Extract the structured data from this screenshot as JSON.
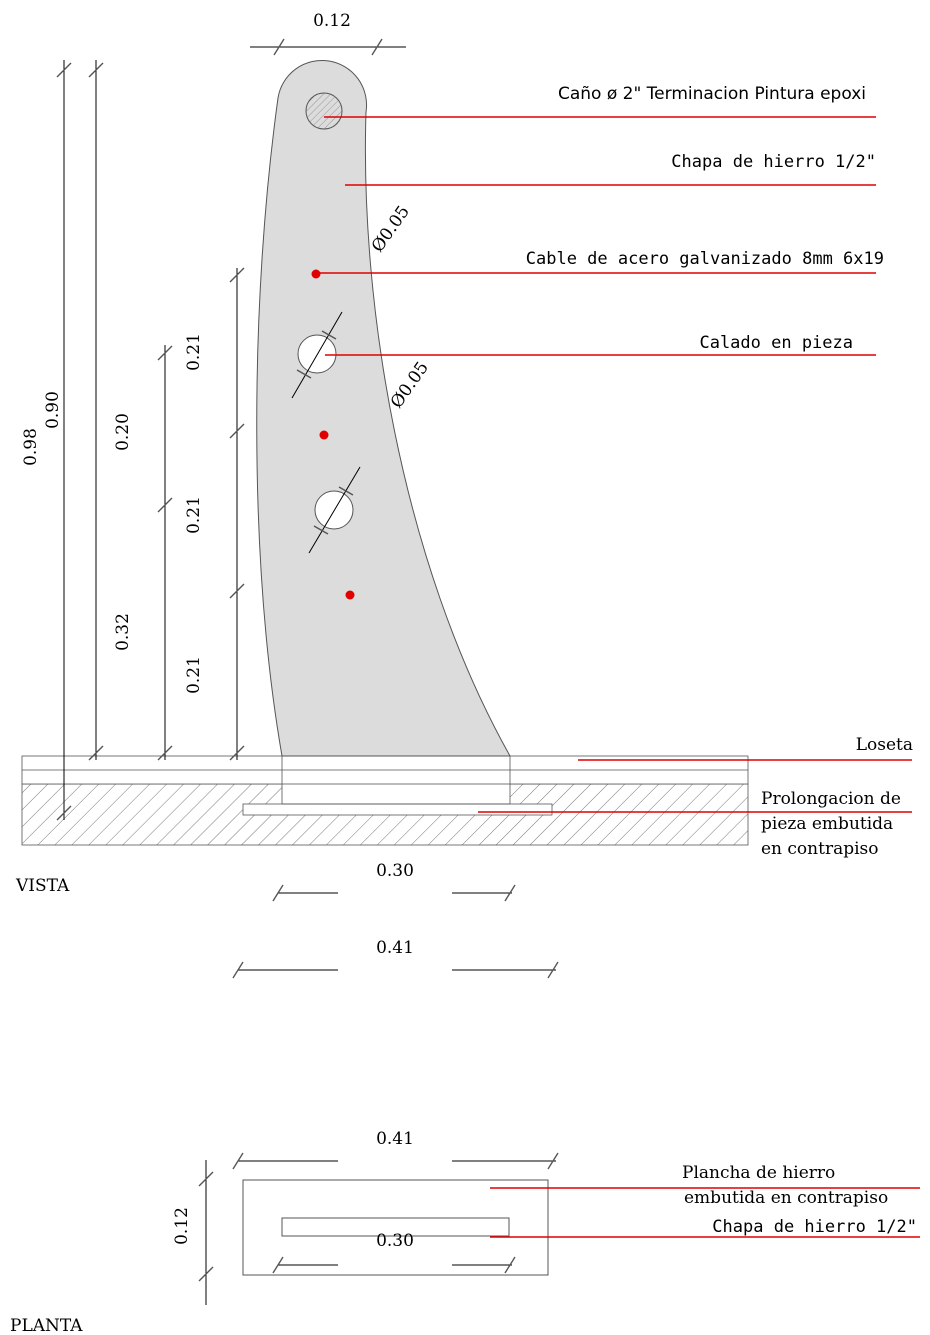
{
  "colors": {
    "leader": "#e00000",
    "piece_fill": "#dcdcdc",
    "cable_dot": "#e00000"
  },
  "views": {
    "vista": "VISTA",
    "planta": "PLANTA"
  },
  "dimensions": {
    "top_width": "0.12",
    "total_height": "0.98",
    "height_090": "0.90",
    "height_020": "0.20",
    "height_032": "0.32",
    "spacing_a": "0.21",
    "spacing_b": "0.21",
    "spacing_c": "0.21",
    "hole_diameter_1": "Ø0.05",
    "hole_diameter_2": "Ø0.05",
    "base_030": "0.30",
    "base_041": "0.41",
    "plan_041": "0.41",
    "plan_012": "0.12",
    "plan_030": "0.30"
  },
  "labels": {
    "pipe": "Caño ø 2\" Terminacion Pintura epoxi",
    "plate": "Chapa de hierro 1/2\"",
    "cable": "Cable de acero galvanizado 8mm 6x19",
    "cutout": "Calado en pieza",
    "tile": "Loseta",
    "extension_1": "Prolongacion de",
    "extension_2": "pieza embutida",
    "extension_3": "en contrapiso",
    "plan_plate_1": "Plancha de hierro",
    "plan_plate_2": "embutida en contrapiso",
    "plan_sheet": "Chapa de hierro 1/2\""
  }
}
